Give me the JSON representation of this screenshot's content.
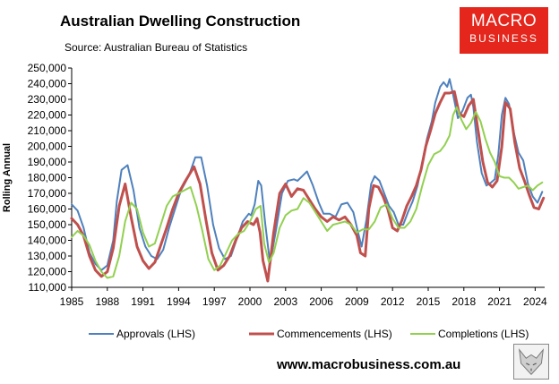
{
  "header": {
    "title": "Australian Dwelling Construction",
    "subtitle": "Source: Australian Bureau of Statistics"
  },
  "logo": {
    "line1": "MACRO",
    "line2": "BUSINESS"
  },
  "footer": {
    "website": "www.macrobusiness.com.au"
  },
  "chart_data": {
    "type": "line",
    "ylabel": "Rolling Annual",
    "xlim": [
      1985,
      2024.8
    ],
    "ylim": [
      110000,
      250000
    ],
    "yticks": [
      110000,
      120000,
      130000,
      140000,
      150000,
      160000,
      170000,
      180000,
      190000,
      200000,
      210000,
      220000,
      230000,
      240000,
      250000
    ],
    "ytick_labels": [
      "110,000",
      "120,000",
      "130,000",
      "140,000",
      "150,000",
      "160,000",
      "170,000",
      "180,000",
      "190,000",
      "200,000",
      "210,000",
      "220,000",
      "230,000",
      "240,000",
      "250,000"
    ],
    "xticks": [
      1985,
      1988,
      1991,
      1994,
      1997,
      2000,
      2003,
      2006,
      2009,
      2012,
      2015,
      2018,
      2021,
      2024
    ],
    "xtick_labels": [
      "1985",
      "1988",
      "1991",
      "1994",
      "1997",
      "2000",
      "2003",
      "2006",
      "2009",
      "2012",
      "2015",
      "2018",
      "2021",
      "2024"
    ],
    "grid": false,
    "legend_position": "bottom",
    "series": [
      {
        "name": "Approvals (LHS)",
        "color": "#4f81bd",
        "x": [
          1985.0,
          1985.5,
          1986.0,
          1986.5,
          1987.0,
          1987.5,
          1988.0,
          1988.5,
          1988.8,
          1989.2,
          1989.7,
          1990.2,
          1990.7,
          1991.2,
          1991.7,
          1992.2,
          1992.7,
          1993.2,
          1993.7,
          1994.2,
          1994.5,
          1994.9,
          1995.4,
          1995.9,
          1996.4,
          1996.9,
          1997.4,
          1997.9,
          1998.4,
          1998.9,
          1999.4,
          1999.9,
          2000.1,
          2000.4,
          2000.7,
          2000.95,
          2001.3,
          2001.7,
          2002.2,
          2002.7,
          2003.2,
          2003.7,
          2004.0,
          2004.4,
          2004.8,
          2005.3,
          2005.8,
          2006.2,
          2006.7,
          2007.2,
          2007.7,
          2008.2,
          2008.7,
          2009.1,
          2009.4,
          2009.8,
          2010.2,
          2010.5,
          2010.9,
          2011.3,
          2011.7,
          2012.1,
          2012.5,
          2012.9,
          2013.3,
          2013.7,
          2014.1,
          2014.5,
          2014.9,
          2015.3,
          2015.6,
          2016.0,
          2016.3,
          2016.6,
          2016.8,
          2017.1,
          2017.5,
          2017.9,
          2018.3,
          2018.6,
          2018.8,
          2019.1,
          2019.5,
          2019.9,
          2020.3,
          2020.6,
          2020.9,
          2021.2,
          2021.5,
          2021.8,
          2022.2,
          2022.6,
          2023.0,
          2023.4,
          2023.8,
          2024.2,
          2024.6
        ],
        "y": [
          163000,
          159000,
          148000,
          132000,
          125000,
          121000,
          124000,
          140000,
          165000,
          185000,
          188000,
          172000,
          148000,
          136000,
          130000,
          128000,
          134000,
          148000,
          160000,
          172000,
          176000,
          182000,
          193000,
          193000,
          175000,
          150000,
          135000,
          128000,
          130000,
          141000,
          152000,
          157000,
          156000,
          163000,
          178000,
          175000,
          150000,
          125000,
          147000,
          170000,
          178000,
          179000,
          178000,
          181000,
          184000,
          175000,
          164000,
          157000,
          157000,
          155000,
          163000,
          164000,
          158000,
          145000,
          136000,
          153000,
          176000,
          181000,
          178000,
          170000,
          162000,
          158000,
          150000,
          150000,
          158000,
          165000,
          175000,
          190000,
          205000,
          216000,
          228000,
          238000,
          241000,
          238000,
          243000,
          233000,
          218000,
          223000,
          231000,
          233000,
          225000,
          203000,
          183000,
          175000,
          177000,
          179000,
          195000,
          220000,
          231000,
          227000,
          209000,
          196000,
          191000,
          176000,
          168000,
          164000,
          171000
        ]
      },
      {
        "name": "Commencements (LHS)",
        "color": "#c0504d",
        "x": [
          1985.0,
          1985.5,
          1986.0,
          1986.5,
          1987.0,
          1987.5,
          1988.0,
          1988.5,
          1989.0,
          1989.5,
          1990.0,
          1990.5,
          1991.0,
          1991.5,
          1992.0,
          1992.5,
          1993.0,
          1993.5,
          1994.0,
          1994.5,
          1994.9,
          1995.3,
          1995.8,
          1996.3,
          1996.8,
          1997.3,
          1997.8,
          1998.3,
          1998.8,
          1999.3,
          1999.8,
          2000.3,
          2000.6,
          2000.85,
          2001.1,
          2001.5,
          2002.0,
          2002.5,
          2003.0,
          2003.5,
          2004.0,
          2004.5,
          2005.0,
          2005.5,
          2006.0,
          2006.5,
          2007.0,
          2007.5,
          2008.0,
          2008.5,
          2009.0,
          2009.3,
          2009.7,
          2010.0,
          2010.4,
          2010.8,
          2011.2,
          2011.6,
          2012.0,
          2012.4,
          2012.8,
          2013.2,
          2013.6,
          2014.0,
          2014.4,
          2014.8,
          2015.2,
          2015.6,
          2016.0,
          2016.4,
          2016.8,
          2017.2,
          2017.6,
          2018.0,
          2018.4,
          2018.8,
          2019.2,
          2019.6,
          2020.0,
          2020.4,
          2020.8,
          2021.2,
          2021.5,
          2021.9,
          2022.3,
          2022.7,
          2023.1,
          2023.5,
          2023.9,
          2024.3,
          2024.7
        ],
        "y": [
          154000,
          150000,
          143000,
          130000,
          121000,
          117000,
          120000,
          135000,
          162000,
          176000,
          155000,
          136000,
          127000,
          122000,
          126000,
          137000,
          148000,
          160000,
          170000,
          177000,
          182000,
          187000,
          176000,
          153000,
          132000,
          121000,
          124000,
          130000,
          140000,
          148000,
          152000,
          150000,
          154000,
          145000,
          127000,
          114000,
          145000,
          170000,
          176000,
          168000,
          173000,
          172000,
          166000,
          160000,
          155000,
          152000,
          155000,
          153000,
          155000,
          150000,
          143000,
          132000,
          130000,
          160000,
          175000,
          174000,
          168000,
          160000,
          148000,
          146000,
          153000,
          162000,
          168000,
          175000,
          185000,
          200000,
          210000,
          221000,
          228000,
          234000,
          234000,
          235000,
          221000,
          219000,
          226000,
          230000,
          210000,
          190000,
          177000,
          174000,
          178000,
          200000,
          228000,
          224000,
          202000,
          186000,
          178000,
          169000,
          161000,
          160000,
          167000
        ]
      },
      {
        "name": "Completions (LHS)",
        "color": "#92d050",
        "x": [
          1985.0,
          1985.5,
          1986.0,
          1986.5,
          1987.0,
          1987.5,
          1988.0,
          1988.5,
          1989.0,
          1989.5,
          1990.0,
          1990.5,
          1991.0,
          1991.5,
          1992.0,
          1992.5,
          1993.0,
          1993.5,
          1994.0,
          1994.5,
          1995.0,
          1995.5,
          1996.0,
          1996.5,
          1997.0,
          1997.5,
          1998.0,
          1998.5,
          1999.0,
          1999.5,
          2000.0,
          2000.5,
          2000.9,
          2001.2,
          2001.6,
          2002.0,
          2002.5,
          2003.0,
          2003.5,
          2004.0,
          2004.5,
          2005.0,
          2005.5,
          2006.0,
          2006.5,
          2007.0,
          2007.5,
          2008.0,
          2008.5,
          2009.0,
          2009.5,
          2010.0,
          2010.5,
          2011.0,
          2011.5,
          2012.0,
          2012.5,
          2013.0,
          2013.5,
          2014.0,
          2014.5,
          2015.0,
          2015.5,
          2016.0,
          2016.4,
          2016.8,
          2017.1,
          2017.4,
          2017.8,
          2018.2,
          2018.6,
          2019.0,
          2019.4,
          2019.8,
          2020.2,
          2020.6,
          2021.0,
          2021.4,
          2021.8,
          2022.2,
          2022.6,
          2023.0,
          2023.4,
          2023.8,
          2024.2,
          2024.6
        ],
        "y": [
          142000,
          146000,
          143000,
          137000,
          127000,
          120000,
          116000,
          117000,
          130000,
          152000,
          164000,
          160000,
          145000,
          136000,
          138000,
          150000,
          162000,
          168000,
          170000,
          172000,
          174000,
          162000,
          146000,
          128000,
          121000,
          124000,
          132000,
          140000,
          144000,
          146000,
          152000,
          160000,
          162000,
          138000,
          126000,
          132000,
          148000,
          156000,
          159000,
          160000,
          167000,
          164000,
          158000,
          152000,
          146000,
          150000,
          151000,
          152000,
          150000,
          145000,
          147000,
          147000,
          152000,
          161000,
          163000,
          154000,
          148000,
          148000,
          152000,
          160000,
          175000,
          188000,
          195000,
          197000,
          201000,
          207000,
          220000,
          225000,
          217000,
          211000,
          215000,
          222000,
          216000,
          205000,
          196000,
          190000,
          181000,
          180000,
          180000,
          177000,
          173000,
          174000,
          175000,
          172000,
          175000,
          177000
        ]
      }
    ]
  }
}
